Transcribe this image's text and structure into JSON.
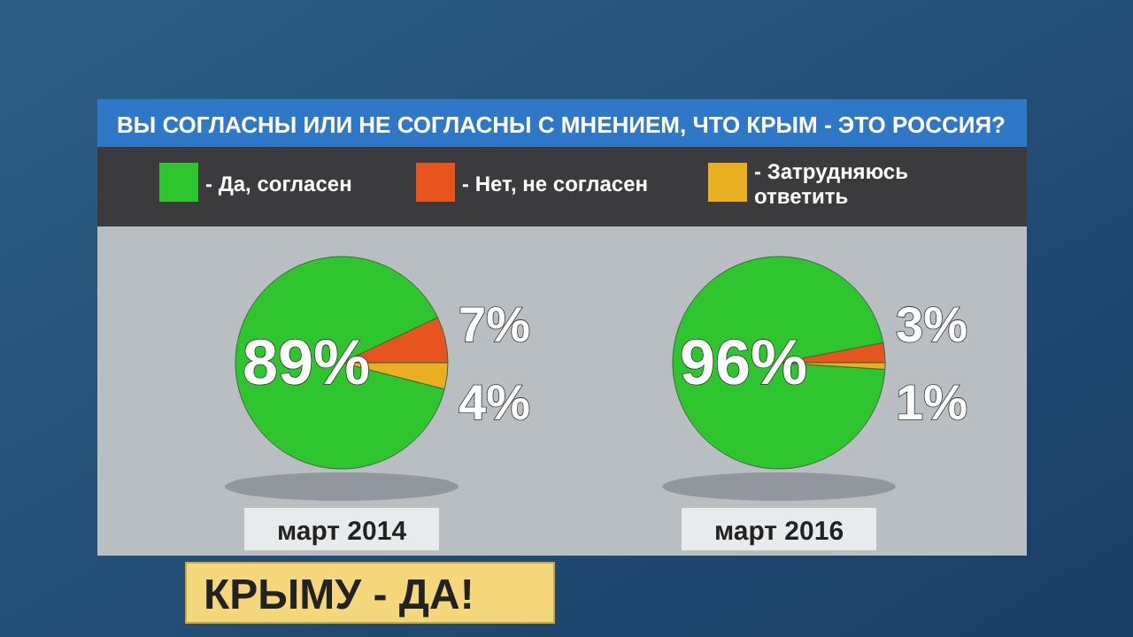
{
  "chart_data": [
    {
      "type": "pie",
      "title": "ВЫ СОГЛАСНЫ ИЛИ НЕ СОГЛАСНЫ С МНЕНИЕМ, ЧТО КРЫМ - ЭТО РОССИЯ?",
      "categories": [
        "- Да, согласен",
        "- Нет, не согласен",
        "- Затрудняюсь ответить"
      ],
      "values": [
        89,
        7,
        4
      ],
      "colors": [
        "#2ec52e",
        "#e8541e",
        "#e8b020"
      ],
      "value_labels": [
        "89%",
        "7%",
        "4%"
      ],
      "legend": "top",
      "xlabel": "март 2014",
      "annotations": [
        "КРЫМУ - ДА!"
      ]
    },
    {
      "type": "pie",
      "categories": [
        null,
        null,
        null
      ],
      "values": [
        96,
        3,
        1
      ],
      "colors": [
        "#2ec52e",
        "#e8541e",
        "#e8b020"
      ],
      "value_labels": [
        "96%",
        "3%",
        "1%"
      ],
      "xlabel": "март 2016"
    }
  ]
}
